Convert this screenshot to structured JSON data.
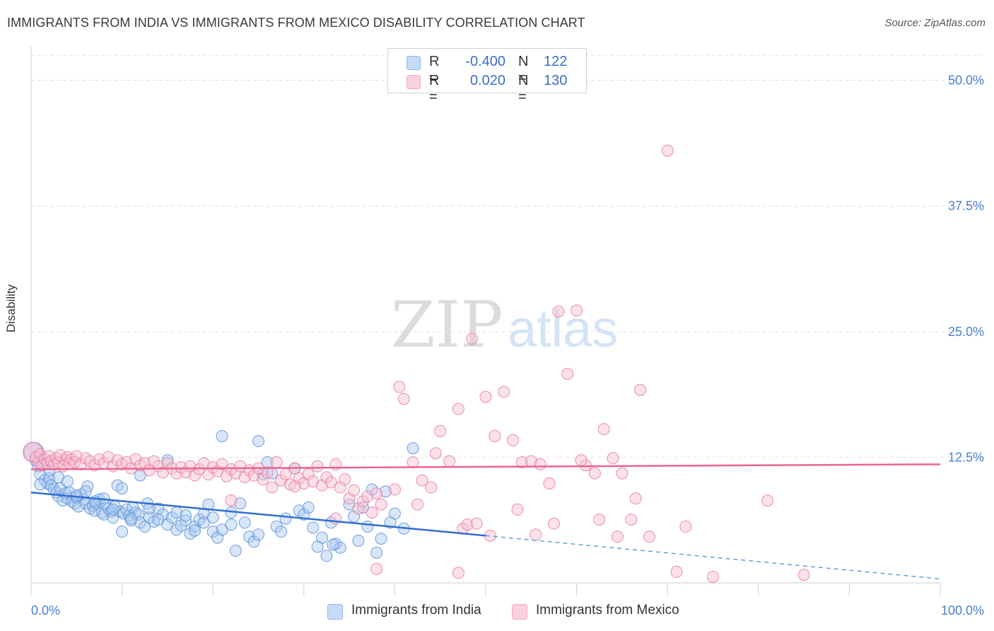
{
  "header": {
    "title": "IMMIGRANTS FROM INDIA VS IMMIGRANTS FROM MEXICO DISABILITY CORRELATION CHART",
    "source": "Source: ZipAtlas.com"
  },
  "watermark": {
    "zip": "ZIP",
    "atlas": "atlas"
  },
  "legend": {
    "rows": [
      {
        "r_label": "R =",
        "r_value": "-0.400",
        "n_label": "N =",
        "n_value": "122",
        "color": "#8fb8ee"
      },
      {
        "r_label": "R =",
        "r_value": "0.020",
        "n_label": "N =",
        "n_value": "130",
        "color": "#f4a6bf"
      }
    ]
  },
  "bottom_legend": {
    "items": [
      {
        "label": "Immigrants from India",
        "color": "#8fb8ee"
      },
      {
        "label": "Immigrants from Mexico",
        "color": "#f4a6bf"
      }
    ]
  },
  "chart_data": {
    "type": "scatter",
    "title": "IMMIGRANTS FROM INDIA VS IMMIGRANTS FROM MEXICO DISABILITY CORRELATION CHART",
    "xlabel": "",
    "ylabel": "Disability",
    "xlim": [
      0,
      100
    ],
    "ylim": [
      0,
      52.5
    ],
    "x_tick_labels": [
      "0.0%",
      "100.0%"
    ],
    "y_ticks": [
      12.5,
      25.0,
      37.5,
      50.0
    ],
    "y_tick_labels": [
      "12.5%",
      "25.0%",
      "37.5%",
      "50.0%"
    ],
    "grid": true,
    "series": [
      {
        "name": "Immigrants from India",
        "color": "#5b8fd6",
        "fill": "#a9c8f0",
        "r": -0.4,
        "n": 122,
        "trend": {
          "x0": 0,
          "y0": 9.0,
          "x1": 50,
          "y1": 4.7,
          "dash_to_x": 100,
          "dash_to_y": 0.4
        },
        "points": [
          [
            0.3,
            13.0
          ],
          [
            0.5,
            12.2
          ],
          [
            0.8,
            11.6
          ],
          [
            1.0,
            10.8
          ],
          [
            1.2,
            11.8
          ],
          [
            1.5,
            10.2
          ],
          [
            1.8,
            9.9
          ],
          [
            2.0,
            10.4
          ],
          [
            2.2,
            9.7
          ],
          [
            2.5,
            9.3
          ],
          [
            2.8,
            9.0
          ],
          [
            3.0,
            8.6
          ],
          [
            3.2,
            9.4
          ],
          [
            3.5,
            8.2
          ],
          [
            3.8,
            8.9
          ],
          [
            4.0,
            8.4
          ],
          [
            4.2,
            9.0
          ],
          [
            4.5,
            8.1
          ],
          [
            4.8,
            7.9
          ],
          [
            5.0,
            8.5
          ],
          [
            5.2,
            7.6
          ],
          [
            5.5,
            8.8
          ],
          [
            5.8,
            8.3
          ],
          [
            6.0,
            7.9
          ],
          [
            6.2,
            9.6
          ],
          [
            6.5,
            7.4
          ],
          [
            6.8,
            7.7
          ],
          [
            7.0,
            7.2
          ],
          [
            7.2,
            7.9
          ],
          [
            7.5,
            8.3
          ],
          [
            7.8,
            7.0
          ],
          [
            8.0,
            6.8
          ],
          [
            8.2,
            7.8
          ],
          [
            8.5,
            7.4
          ],
          [
            8.8,
            7.1
          ],
          [
            9.0,
            6.5
          ],
          [
            9.2,
            7.6
          ],
          [
            9.5,
            9.7
          ],
          [
            9.8,
            7.1
          ],
          [
            10.0,
            5.1
          ],
          [
            10.2,
            6.9
          ],
          [
            10.5,
            7.3
          ],
          [
            10.8,
            6.7
          ],
          [
            11.0,
            6.2
          ],
          [
            11.2,
            7.5
          ],
          [
            11.5,
            7.0
          ],
          [
            11.8,
            6.8
          ],
          [
            12.0,
            6.0
          ],
          [
            12.5,
            5.6
          ],
          [
            12.8,
            7.9
          ],
          [
            13.0,
            6.5
          ],
          [
            13.5,
            6.1
          ],
          [
            14.0,
            7.4
          ],
          [
            14.5,
            6.8
          ],
          [
            15.0,
            5.8
          ],
          [
            15.5,
            6.5
          ],
          [
            16.0,
            5.3
          ],
          [
            16.5,
            5.7
          ],
          [
            17.0,
            6.2
          ],
          [
            17.5,
            4.9
          ],
          [
            18.0,
            5.6
          ],
          [
            18.5,
            6.3
          ],
          [
            19.0,
            6.9
          ],
          [
            19.5,
            7.8
          ],
          [
            20.0,
            5.1
          ],
          [
            20.5,
            4.5
          ],
          [
            21.0,
            5.3
          ],
          [
            22.0,
            5.8
          ],
          [
            22.5,
            3.2
          ],
          [
            23.0,
            7.9
          ],
          [
            23.5,
            6.0
          ],
          [
            24.0,
            4.6
          ],
          [
            24.5,
            4.1
          ],
          [
            25.0,
            4.8
          ],
          [
            25.5,
            10.8
          ],
          [
            26.0,
            12.0
          ],
          [
            27.0,
            5.6
          ],
          [
            28.0,
            6.4
          ],
          [
            29.0,
            11.4
          ],
          [
            29.5,
            7.2
          ],
          [
            30.0,
            6.8
          ],
          [
            31.0,
            5.5
          ],
          [
            32.0,
            4.5
          ],
          [
            32.5,
            2.7
          ],
          [
            33.0,
            6.0
          ],
          [
            33.5,
            3.9
          ],
          [
            34.0,
            3.5
          ],
          [
            35.0,
            7.8
          ],
          [
            36.0,
            4.2
          ],
          [
            37.0,
            5.6
          ],
          [
            38.0,
            3.0
          ],
          [
            39.0,
            9.1
          ],
          [
            40.0,
            6.9
          ],
          [
            41.0,
            5.4
          ],
          [
            42.0,
            13.4
          ],
          [
            1.0,
            9.8
          ],
          [
            2.0,
            11.2
          ],
          [
            3.0,
            10.5
          ],
          [
            4.0,
            10.1
          ],
          [
            5.0,
            8.7
          ],
          [
            6.0,
            9.1
          ],
          [
            7.0,
            8.1
          ],
          [
            8.0,
            8.4
          ],
          [
            9.0,
            7.3
          ],
          [
            10.0,
            9.4
          ],
          [
            11.0,
            6.4
          ],
          [
            12.0,
            10.7
          ],
          [
            13.0,
            7.4
          ],
          [
            14.0,
            6.3
          ],
          [
            15.0,
            12.2
          ],
          [
            16.0,
            7.0
          ],
          [
            17.0,
            6.7
          ],
          [
            18.0,
            5.2
          ],
          [
            19.0,
            6.0
          ],
          [
            20.0,
            6.5
          ],
          [
            21.0,
            14.6
          ],
          [
            22.0,
            7.0
          ],
          [
            25.0,
            14.1
          ],
          [
            26.5,
            10.9
          ],
          [
            27.5,
            5.1
          ],
          [
            30.5,
            7.5
          ],
          [
            31.5,
            3.6
          ],
          [
            33.2,
            3.8
          ],
          [
            35.5,
            6.6
          ],
          [
            36.5,
            7.5
          ],
          [
            37.5,
            9.3
          ],
          [
            38.5,
            4.4
          ],
          [
            39.5,
            6.0
          ]
        ]
      },
      {
        "name": "Immigrants from Mexico",
        "color": "#e77a9e",
        "fill": "#f7bfd1",
        "r": 0.02,
        "n": 130,
        "trend": {
          "x0": 0,
          "y0": 11.3,
          "x1": 100,
          "y1": 11.8
        },
        "points": [
          [
            0.2,
            13.0
          ],
          [
            0.5,
            12.5
          ],
          [
            0.8,
            12.0
          ],
          [
            1.0,
            12.8
          ],
          [
            1.2,
            11.7
          ],
          [
            1.5,
            12.3
          ],
          [
            1.8,
            11.9
          ],
          [
            2.0,
            12.6
          ],
          [
            2.2,
            12.1
          ],
          [
            2.5,
            11.8
          ],
          [
            2.8,
            12.4
          ],
          [
            3.0,
            12.0
          ],
          [
            3.2,
            12.7
          ],
          [
            3.5,
            11.6
          ],
          [
            3.8,
            12.2
          ],
          [
            4.0,
            12.5
          ],
          [
            4.2,
            11.9
          ],
          [
            4.5,
            12.3
          ],
          [
            4.8,
            12.0
          ],
          [
            5.0,
            12.6
          ],
          [
            5.5,
            11.8
          ],
          [
            6.0,
            12.4
          ],
          [
            6.5,
            12.1
          ],
          [
            7.0,
            11.7
          ],
          [
            7.5,
            12.3
          ],
          [
            8.0,
            11.9
          ],
          [
            8.5,
            12.5
          ],
          [
            9.0,
            11.6
          ],
          [
            9.5,
            12.2
          ],
          [
            10.0,
            11.8
          ],
          [
            10.5,
            12.0
          ],
          [
            11.0,
            11.4
          ],
          [
            11.5,
            12.3
          ],
          [
            12.0,
            11.7
          ],
          [
            12.5,
            11.9
          ],
          [
            13.0,
            11.2
          ],
          [
            13.5,
            12.1
          ],
          [
            14.0,
            11.6
          ],
          [
            14.5,
            11.0
          ],
          [
            15.0,
            11.9
          ],
          [
            15.5,
            11.4
          ],
          [
            16.0,
            10.9
          ],
          [
            16.5,
            11.5
          ],
          [
            17.0,
            11.0
          ],
          [
            17.5,
            11.6
          ],
          [
            18.0,
            10.7
          ],
          [
            18.5,
            11.3
          ],
          [
            19.0,
            11.9
          ],
          [
            19.5,
            10.8
          ],
          [
            20.0,
            11.5
          ],
          [
            20.5,
            11.1
          ],
          [
            21.0,
            11.8
          ],
          [
            21.5,
            10.6
          ],
          [
            22.0,
            11.3
          ],
          [
            22.5,
            10.9
          ],
          [
            23.0,
            11.6
          ],
          [
            23.5,
            10.5
          ],
          [
            24.0,
            11.2
          ],
          [
            24.5,
            10.7
          ],
          [
            25.0,
            11.4
          ],
          [
            25.5,
            10.3
          ],
          [
            26.0,
            11.0
          ],
          [
            26.5,
            9.5
          ],
          [
            27.0,
            12.0
          ],
          [
            27.5,
            10.2
          ],
          [
            28.0,
            10.8
          ],
          [
            28.5,
            9.8
          ],
          [
            29.0,
            11.4
          ],
          [
            29.5,
            10.4
          ],
          [
            30.0,
            9.9
          ],
          [
            30.5,
            10.8
          ],
          [
            31.0,
            10.1
          ],
          [
            31.5,
            11.6
          ],
          [
            32.0,
            9.7
          ],
          [
            32.5,
            10.5
          ],
          [
            33.0,
            10.0
          ],
          [
            33.5,
            11.8
          ],
          [
            34.0,
            9.5
          ],
          [
            34.5,
            10.3
          ],
          [
            35.0,
            8.4
          ],
          [
            35.5,
            9.2
          ],
          [
            36.0,
            7.4
          ],
          [
            36.5,
            8.1
          ],
          [
            37.0,
            8.6
          ],
          [
            37.5,
            7.0
          ],
          [
            38.0,
            8.9
          ],
          [
            38.5,
            7.8
          ],
          [
            40.5,
            19.5
          ],
          [
            41.0,
            18.3
          ],
          [
            42.0,
            12.0
          ],
          [
            43.0,
            10.2
          ],
          [
            44.0,
            9.5
          ],
          [
            45.0,
            15.1
          ],
          [
            46.0,
            12.1
          ],
          [
            47.0,
            17.3
          ],
          [
            47.5,
            5.4
          ],
          [
            48.0,
            5.8
          ],
          [
            48.5,
            24.3
          ],
          [
            49.0,
            5.9
          ],
          [
            50.0,
            18.5
          ],
          [
            51.0,
            14.6
          ],
          [
            52.0,
            19.0
          ],
          [
            53.0,
            14.2
          ],
          [
            54.0,
            12.0
          ],
          [
            55.0,
            12.1
          ],
          [
            56.0,
            11.8
          ],
          [
            57.0,
            9.9
          ],
          [
            58.0,
            27.0
          ],
          [
            60.0,
            27.1
          ],
          [
            59.0,
            20.8
          ],
          [
            61.0,
            11.7
          ],
          [
            62.0,
            10.9
          ],
          [
            63.0,
            15.3
          ],
          [
            64.0,
            12.4
          ],
          [
            65.0,
            10.9
          ],
          [
            66.0,
            6.3
          ],
          [
            67.0,
            19.2
          ],
          [
            68.0,
            4.6
          ],
          [
            70.0,
            43.0
          ],
          [
            71.0,
            1.1
          ],
          [
            72.0,
            5.6
          ],
          [
            75.0,
            0.6
          ],
          [
            81.0,
            8.2
          ],
          [
            85.0,
            0.8
          ],
          [
            38.0,
            1.4
          ],
          [
            47.0,
            1.0
          ],
          [
            33.5,
            6.4
          ],
          [
            40.0,
            9.3
          ],
          [
            42.5,
            7.8
          ],
          [
            44.5,
            12.9
          ],
          [
            50.5,
            4.7
          ],
          [
            53.5,
            7.3
          ],
          [
            55.5,
            4.8
          ],
          [
            57.5,
            5.9
          ],
          [
            60.5,
            12.2
          ],
          [
            62.5,
            6.3
          ],
          [
            64.5,
            4.6
          ],
          [
            66.5,
            8.4
          ],
          [
            22.0,
            8.2
          ],
          [
            29.0,
            9.6
          ]
        ]
      }
    ]
  }
}
